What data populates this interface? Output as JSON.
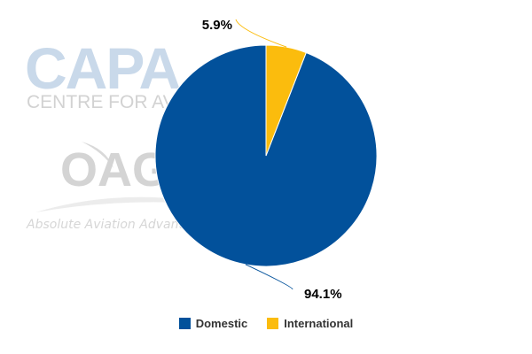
{
  "watermark": {
    "capa_logo": "CAPA",
    "capa_sub": "CENTRE FOR AVIATION",
    "oag_logo": "OAG",
    "oag_tagline": "Absolute Aviation Advantage"
  },
  "chart_data": {
    "type": "pie",
    "title": "",
    "categories": [
      "Domestic",
      "International"
    ],
    "values": [
      94.1,
      5.9
    ],
    "labels": [
      "94.1%",
      "5.9%"
    ],
    "colors": [
      "#02519b",
      "#fbbc0d"
    ],
    "legend_position": "bottom-center"
  }
}
